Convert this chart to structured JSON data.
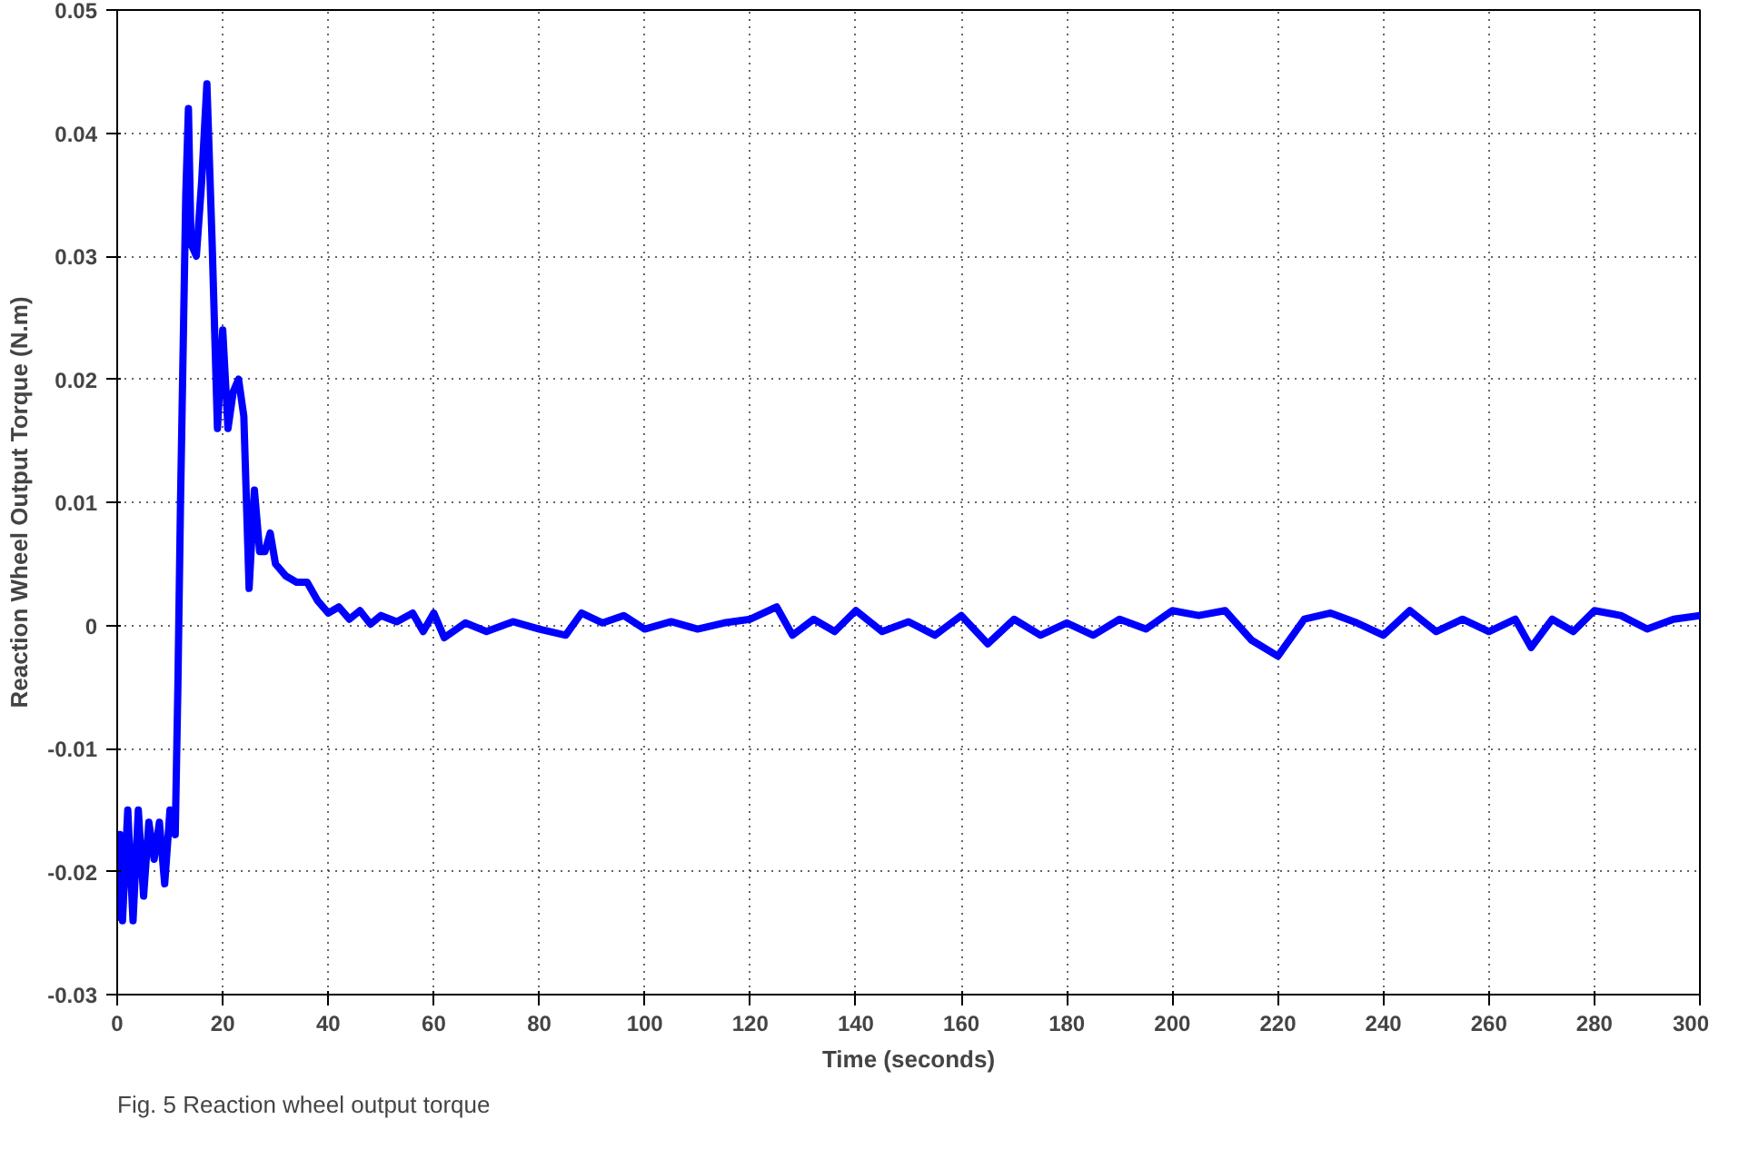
{
  "chart_data": {
    "type": "line",
    "xlabel": "Time (seconds)",
    "ylabel": "Reaction Wheel Output Torque (N.m)",
    "annotations": [
      "Fig. 5 Reaction wheel output torque"
    ],
    "xlim": [
      0,
      300
    ],
    "ylim": [
      -0.03,
      0.05
    ],
    "xticks": [
      0,
      20,
      40,
      60,
      80,
      100,
      120,
      140,
      160,
      180,
      200,
      220,
      240,
      260,
      280,
      300
    ],
    "yticks": [
      -0.03,
      -0.02,
      -0.01,
      0,
      0.01,
      0.02,
      0.03,
      0.04,
      0.05
    ],
    "grid": true,
    "line_style": "solid",
    "marker": "none",
    "series": [
      {
        "color": "#0000ff",
        "x": [
          0,
          0.5,
          1,
          2,
          3,
          4,
          5,
          6,
          7,
          8,
          9,
          10,
          11,
          11.5,
          12,
          13,
          13.5,
          14,
          15,
          16,
          17,
          18,
          19,
          20,
          21,
          22,
          23,
          24,
          25,
          26,
          27,
          28,
          29,
          30,
          32,
          34,
          36,
          38,
          40,
          42,
          44,
          46,
          48,
          50,
          53,
          56,
          58,
          60,
          62,
          66,
          70,
          75,
          80,
          85,
          88,
          92,
          96,
          100,
          105,
          110,
          115,
          120,
          125,
          128,
          132,
          136,
          140,
          145,
          150,
          155,
          160,
          165,
          170,
          175,
          180,
          185,
          190,
          195,
          200,
          205,
          210,
          215,
          220,
          225,
          230,
          235,
          240,
          245,
          250,
          255,
          260,
          265,
          268,
          272,
          276,
          280,
          285,
          290,
          295,
          300
        ],
        "values": [
          -0.024,
          -0.017,
          -0.024,
          -0.015,
          -0.024,
          -0.015,
          -0.022,
          -0.016,
          -0.019,
          -0.016,
          -0.021,
          -0.015,
          -0.017,
          -0.005,
          0.01,
          0.035,
          0.042,
          0.031,
          0.03,
          0.036,
          0.044,
          0.031,
          0.016,
          0.024,
          0.016,
          0.019,
          0.02,
          0.017,
          0.003,
          0.011,
          0.006,
          0.006,
          0.0075,
          0.005,
          0.004,
          0.0035,
          0.0035,
          0.002,
          0.001,
          0.0015,
          0.0005,
          0.0012,
          0.0001,
          0.0008,
          0.0003,
          0.001,
          -0.0005,
          0.001,
          -0.001,
          0.0002,
          -0.0005,
          0.0003,
          -0.0003,
          -0.0008,
          0.001,
          0.0002,
          0.0008,
          -0.0003,
          0.0003,
          -0.0003,
          0.0002,
          0.0005,
          0.0015,
          -0.0008,
          0.0005,
          -0.0005,
          0.0012,
          -0.0005,
          0.0003,
          -0.0008,
          0.0008,
          -0.0015,
          0.0005,
          -0.0008,
          0.0002,
          -0.0008,
          0.0005,
          -0.0003,
          0.0012,
          0.0008,
          0.0012,
          -0.0012,
          -0.0025,
          0.0005,
          0.001,
          0.0002,
          -0.0008,
          0.0012,
          -0.0005,
          0.0005,
          -0.0005,
          0.0005,
          -0.0018,
          0.0005,
          -0.0005,
          0.0012,
          0.0008,
          -0.0003,
          0.0005,
          0.0008
        ]
      }
    ]
  }
}
